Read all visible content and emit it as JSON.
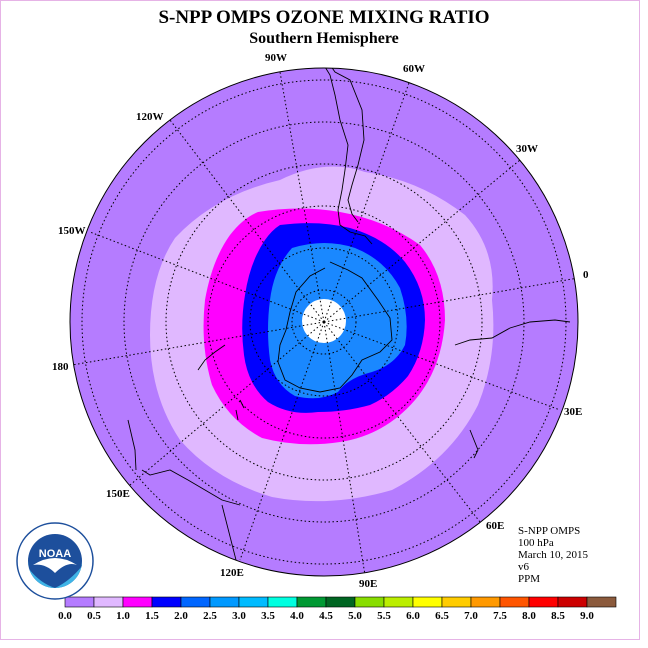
{
  "title": "S-NPP OMPS OZONE MIXING RATIO",
  "subtitle": "Southern Hemisphere",
  "longitude_labels": [
    "90W",
    "60W",
    "30W",
    "0",
    "30E",
    "60E",
    "90E",
    "120E",
    "150E",
    "180",
    "150W",
    "120W"
  ],
  "info": {
    "instrument": "S-NPP OMPS",
    "level": "100 hPa",
    "date": "March 10, 2015",
    "version": "v6",
    "units": "PPM"
  },
  "logo": {
    "text": "NOAA",
    "icon": "noaa-logo"
  },
  "colorbar": {
    "ticks": [
      "0.0",
      "0.5",
      "1.0",
      "1.5",
      "2.0",
      "2.5",
      "3.0",
      "3.5",
      "4.0",
      "4.5",
      "5.0",
      "5.5",
      "6.0",
      "6.5",
      "7.0",
      "7.5",
      "8.0",
      "8.5",
      "9.0"
    ],
    "colors": [
      "#b57cff",
      "#e0b8ff",
      "#ff00ff",
      "#0000ff",
      "#0066ff",
      "#0099ff",
      "#00bbff",
      "#00ffe0",
      "#009933",
      "#006622",
      "#88dd00",
      "#bbee00",
      "#ffff00",
      "#ffcc00",
      "#ff9900",
      "#ff5500",
      "#ff0000",
      "#cc0000",
      "#8b5a3c"
    ]
  },
  "map_fills": {
    "outer": "#b57cff",
    "band_05_10": "#e0b8ff",
    "band_10_15": "#ff00ff",
    "band_15_20": "#0000ff",
    "band_20_25": "#1a88ff",
    "pole_gap": "#ffffff"
  }
}
